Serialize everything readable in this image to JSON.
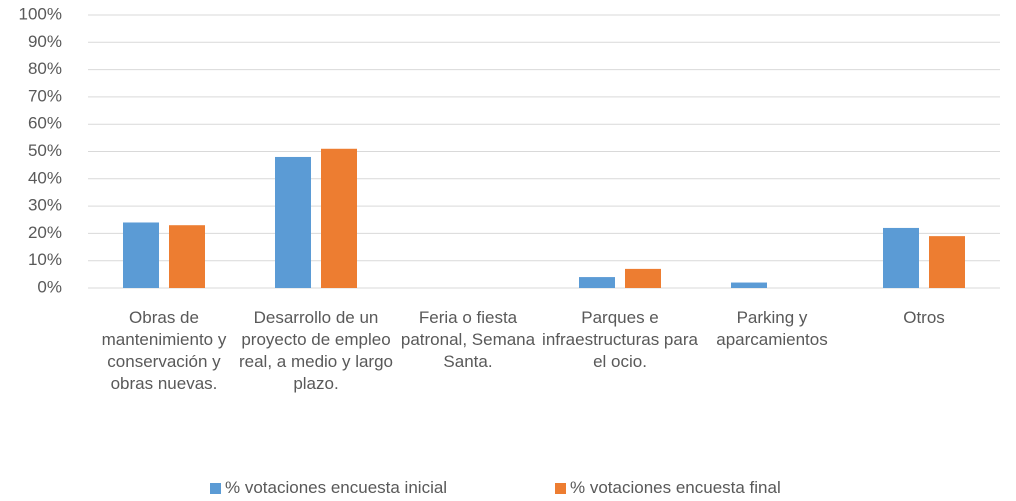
{
  "chart_data": {
    "type": "bar",
    "categories": [
      "Obras de mantenimiento y conservación y obras nuevas.",
      "Desarrollo de un proyecto de empleo real, a medio y largo plazo.",
      "Feria o fiesta patronal, Semana Santa.",
      "Parques e infraestructuras para el ocio.",
      "Parking y aparcamientos",
      "Otros"
    ],
    "series": [
      {
        "name": "% votaciones encuesta inicial",
        "color": "#5b9bd5",
        "values": [
          24,
          48,
          0,
          4,
          2,
          22
        ]
      },
      {
        "name": "% votaciones encuesta final",
        "color": "#ed7d31",
        "values": [
          23,
          51,
          0,
          7,
          0,
          19
        ]
      }
    ],
    "ylim": [
      0,
      100
    ],
    "yticks": [
      {
        "value": 0,
        "label": "0%"
      },
      {
        "value": 10,
        "label": "10%"
      },
      {
        "value": 20,
        "label": "20%"
      },
      {
        "value": 30,
        "label": "30%"
      },
      {
        "value": 40,
        "label": "40%"
      },
      {
        "value": 50,
        "label": "50%"
      },
      {
        "value": 60,
        "label": "60%"
      },
      {
        "value": 70,
        "label": "70%"
      },
      {
        "value": 80,
        "label": "80%"
      },
      {
        "value": 90,
        "label": "90%"
      },
      {
        "value": 100,
        "label": "100%"
      }
    ],
    "grid": true,
    "legend": "bottom"
  }
}
